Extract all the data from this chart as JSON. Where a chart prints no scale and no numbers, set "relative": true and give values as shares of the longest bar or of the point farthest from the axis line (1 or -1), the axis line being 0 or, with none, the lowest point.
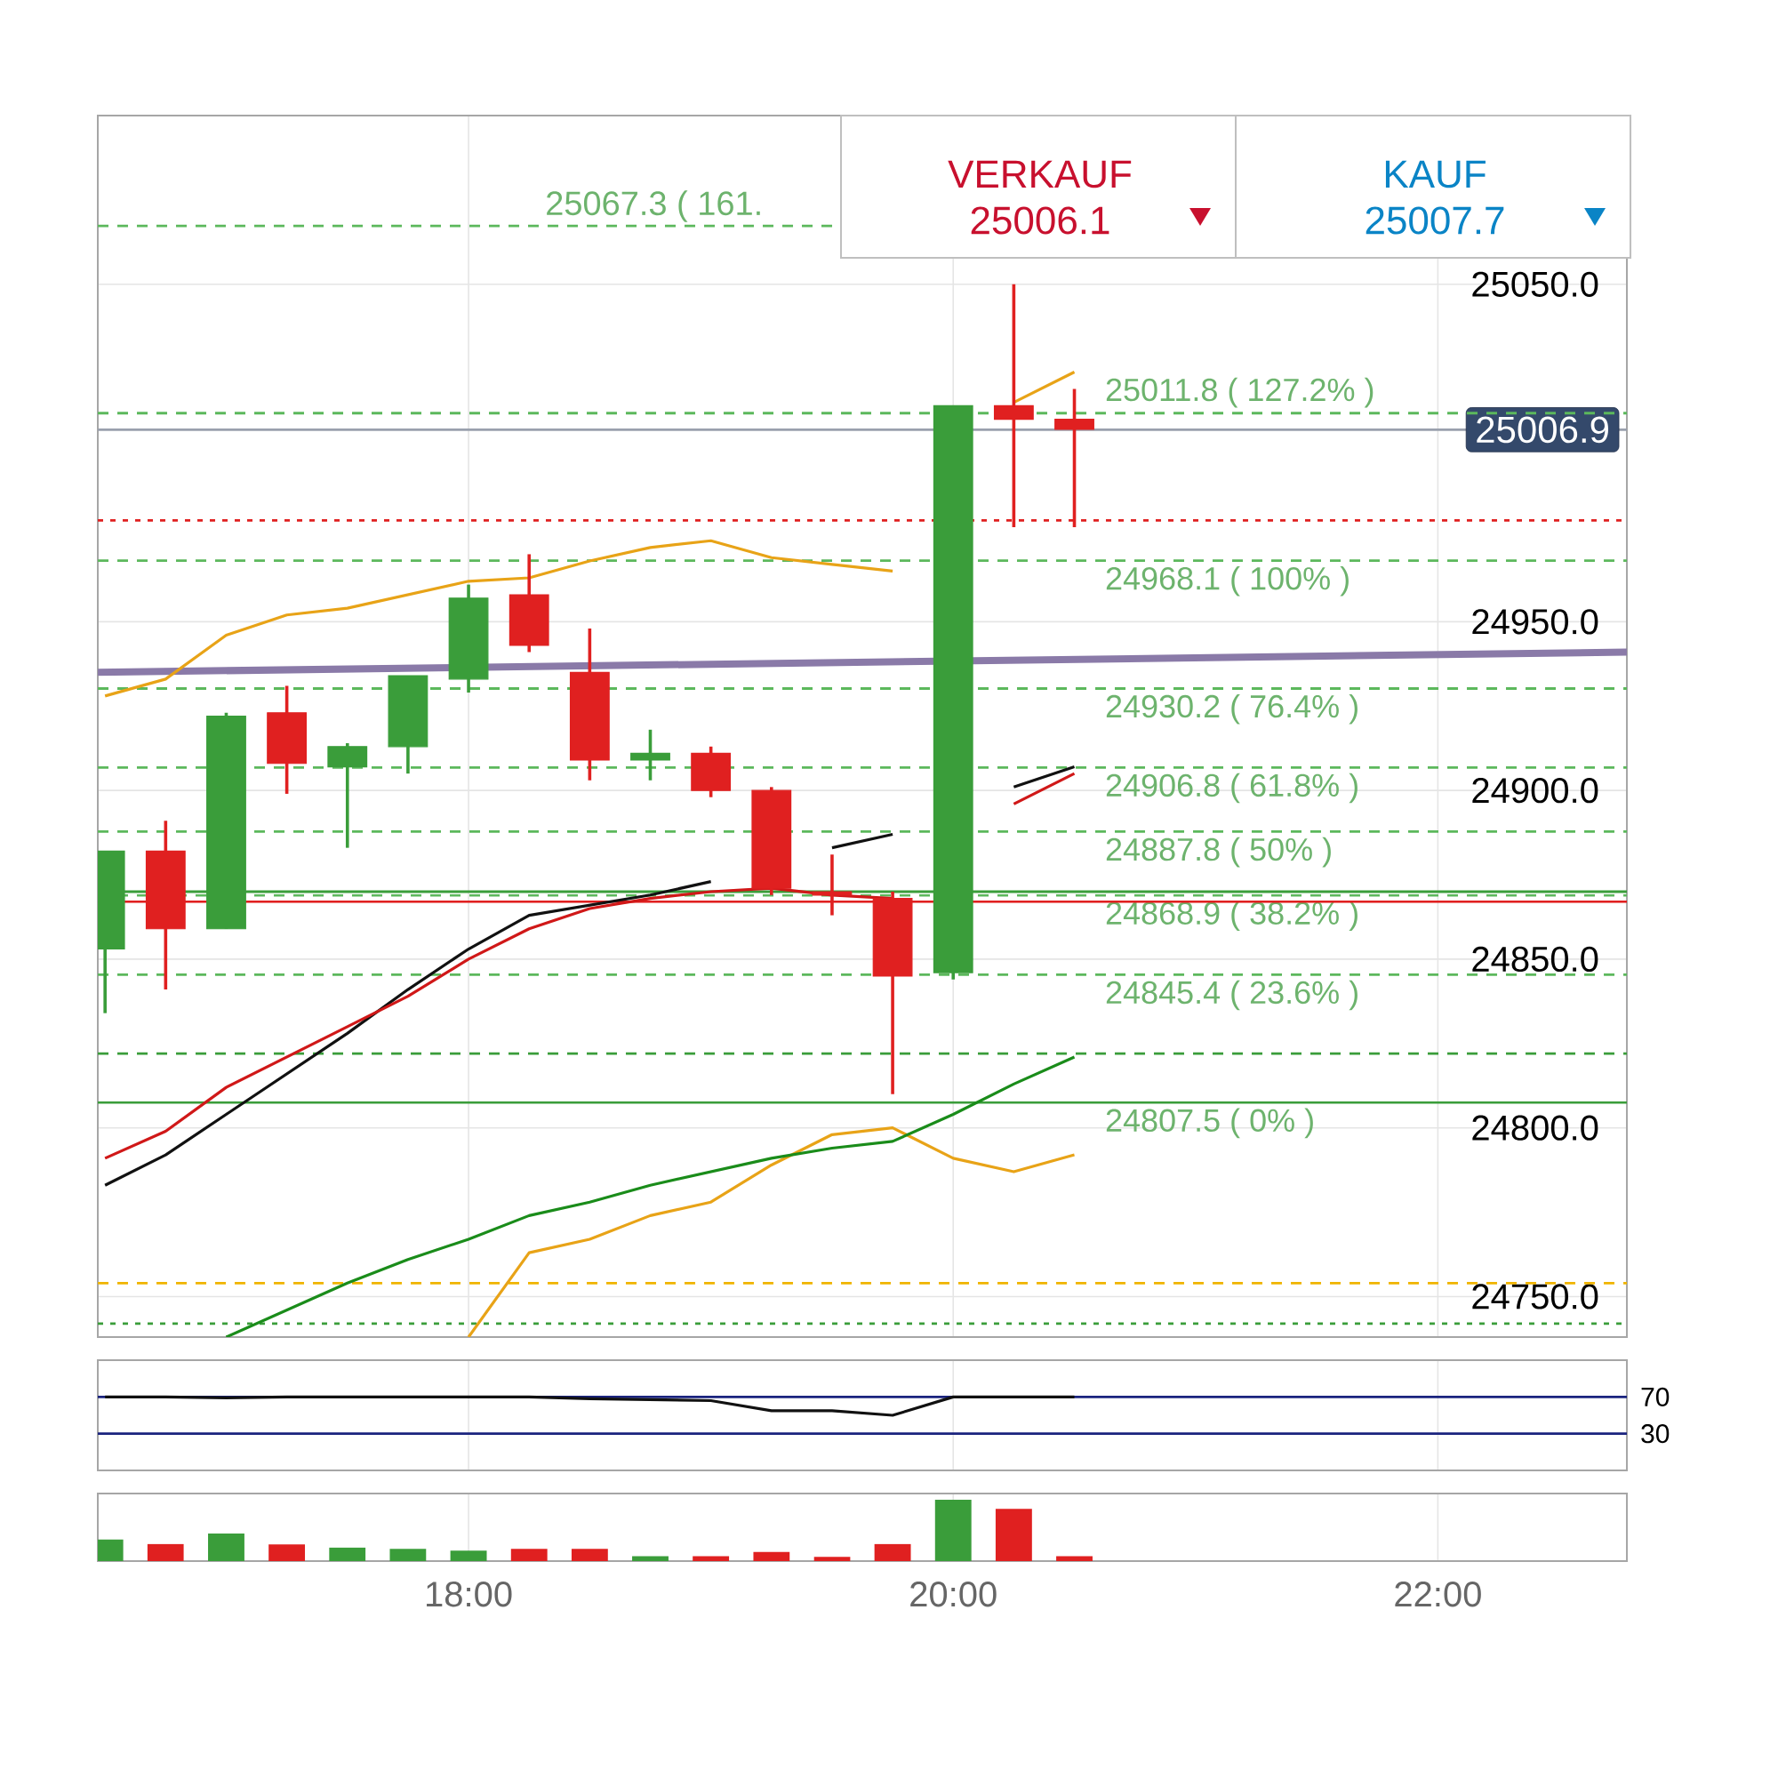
{
  "chart_data": [
    {
      "type": "candlestick",
      "annotations": [
        "VERKAUF",
        "25006.1",
        "KAUF",
        "25007.7"
      ],
      "x": [
        16.5,
        16.75,
        17,
        17.25,
        17.5,
        17.75,
        18,
        18.25,
        18.5,
        18.75,
        19,
        19.25,
        19.5,
        19.75,
        20,
        20.25,
        20.5
      ],
      "ohlc": [
        [
          24853,
          24882,
          24834,
          24882
        ],
        [
          24882,
          24891,
          24841,
          24859
        ],
        [
          24859,
          24923,
          24859,
          24922
        ],
        [
          24923,
          24931,
          24899,
          24908
        ],
        [
          24907,
          24914,
          24883,
          24913
        ],
        [
          24913,
          24934,
          24905,
          24934
        ],
        [
          24933,
          24961,
          24929,
          24957
        ],
        [
          24958,
          24970,
          24941,
          24943
        ],
        [
          24935,
          24948,
          24903,
          24909
        ],
        [
          24909,
          24918,
          24903,
          24911
        ],
        [
          24911,
          24913,
          24898,
          24900
        ],
        [
          24900,
          24901,
          24869,
          24871
        ],
        [
          24870,
          24881,
          24863,
          24869
        ],
        [
          24868,
          24870,
          24810,
          24845
        ],
        [
          24846,
          25014,
          24844,
          25014
        ],
        [
          25014,
          25050,
          24978,
          25010
        ],
        [
          25010,
          25019,
          24978,
          25007
        ]
      ],
      "colors": [
        "#3a9d3a",
        "#e02020",
        "#3a9d3a",
        "#e02020",
        "#3a9d3a",
        "#3a9d3a",
        "#3a9d3a",
        "#e02020",
        "#e02020",
        "#3a9d3a",
        "#e02020",
        "#e02020",
        "#e02020",
        "#e02020",
        "#3a9d3a",
        "#e02020",
        "#e02020"
      ],
      "series": [
        {
          "type": "line",
          "color": "#8a7aa8",
          "x": [
            16.47,
            22.78
          ],
          "values": [
            24935,
            24941
          ]
        },
        {
          "type": "line",
          "color": "#e8a317",
          "x": [
            16.5,
            16.75,
            17,
            17.25,
            17.5,
            17.75,
            18,
            18.25,
            18.5,
            18.75,
            19,
            19.25,
            19.5,
            19.75,
            20,
            20.25,
            20.5
          ],
          "values": [
            24928,
            24933,
            24946,
            24952,
            24954,
            24958,
            24962,
            24963,
            24968,
            24972,
            24974,
            24969,
            24967,
            24965,
            null,
            25015,
            25024
          ]
        },
        {
          "type": "line",
          "color": "#e8a317",
          "x": [
            18,
            18.25,
            18.5,
            18.75,
            19,
            19.25,
            19.5,
            19.75,
            20,
            20.25,
            20.5
          ],
          "values": [
            24738,
            24763,
            24767,
            24774,
            24778,
            24789,
            24798,
            24800,
            24791,
            24787,
            24792
          ]
        },
        {
          "type": "line",
          "color": "#1a8c1a",
          "x": [
            17,
            17.25,
            17.5,
            17.75,
            18,
            18.25,
            18.5,
            18.75,
            19,
            19.25,
            19.5,
            19.75,
            20,
            20.25,
            20.5
          ],
          "values": [
            24738,
            24746,
            24754,
            24761,
            24767,
            24774,
            24778,
            24783,
            24787,
            24791,
            24794,
            24796,
            24804,
            24813,
            24821
          ]
        },
        {
          "type": "line",
          "color": "#111111",
          "x": [
            16.5,
            16.75,
            17,
            17.25,
            17.5,
            17.75,
            18,
            18.25,
            18.5,
            18.75,
            19,
            19.25,
            19.5,
            19.75,
            20,
            20.25,
            20.5
          ],
          "values": [
            24783,
            24792,
            24804,
            24816,
            24828,
            24841,
            24853,
            24863,
            24866,
            24869,
            24873,
            null,
            24883,
            24887,
            null,
            24901,
            24907
          ]
        },
        {
          "type": "line",
          "color": "#d01818",
          "x": [
            16.5,
            16.75,
            17,
            17.25,
            17.5,
            17.75,
            18,
            18.25,
            18.5,
            18.75,
            19,
            19.25,
            19.5,
            19.75,
            20,
            20.25,
            20.5
          ],
          "values": [
            24791,
            24799,
            24812,
            24821,
            24830,
            24839,
            24850,
            24859,
            24865,
            24868,
            24870,
            24871,
            24869,
            24868,
            null,
            24896,
            24905
          ]
        }
      ],
      "ref_lines": [
        {
          "axis": "y",
          "value": 25006.9,
          "label": "25006.9",
          "color": "#9aa0ad",
          "line_style": "solid"
        },
        {
          "axis": "y",
          "value": 25067.3,
          "label": "25067.3 ( 161.",
          "color": "#5cb85c",
          "line_style": "dashed"
        },
        {
          "axis": "y",
          "value": 25011.8,
          "label": "25011.8 ( 127.2% )",
          "color": "#5cb85c",
          "line_style": "dashed"
        },
        {
          "axis": "y",
          "value": 24968.1,
          "label": "24968.1 ( 100% )",
          "color": "#5cb85c",
          "line_style": "dashed"
        },
        {
          "axis": "y",
          "value": 24930.2,
          "label": "24930.2 ( 76.4% )",
          "color": "#5cb85c",
          "line_style": "dashed"
        },
        {
          "axis": "y",
          "value": 24906.8,
          "label": "24906.8 ( 61.8% )",
          "color": "#5cb85c",
          "line_style": "dashed"
        },
        {
          "axis": "y",
          "value": 24887.8,
          "label": "24887.8 ( 50% )",
          "color": "#5cb85c",
          "line_style": "dashed"
        },
        {
          "axis": "y",
          "value": 24868.9,
          "label": "24868.9 ( 38.2% )",
          "color": "#5cb85c",
          "line_style": "dashed"
        },
        {
          "axis": "y",
          "value": 24845.4,
          "label": "24845.4 ( 23.6% )",
          "color": "#5cb85c",
          "line_style": "dashed"
        },
        {
          "axis": "y",
          "value": 24807.5,
          "label": "24807.5 ( 0% )",
          "color": "#3a9d3a",
          "line_style": "solid"
        },
        {
          "axis": "y",
          "value": 24980,
          "color": "#e02020",
          "line_style": "dotted"
        },
        {
          "axis": "y",
          "value": 24870,
          "color": "#3a9d3a",
          "line_style": "solid"
        },
        {
          "axis": "y",
          "value": 24867,
          "color": "#e02020",
          "line_style": "solid"
        },
        {
          "axis": "y",
          "value": 24822,
          "color": "#3a9d3a",
          "line_style": "dashed"
        },
        {
          "axis": "y",
          "value": 24754,
          "color": "#f0b400",
          "line_style": "dashed"
        },
        {
          "axis": "y",
          "value": 24742,
          "color": "#3a9d3a",
          "line_style": "dotted"
        }
      ],
      "xlim": [
        16.47,
        22.78
      ],
      "xticks": [
        {
          "value": 18,
          "label": null
        },
        {
          "value": 20,
          "label": null
        },
        {
          "value": 22,
          "label": null
        }
      ],
      "ylim": [
        24738,
        25100
      ],
      "yticks": [
        {
          "value": 24750,
          "label": "24750.0"
        },
        {
          "value": 24800,
          "label": "24800.0"
        },
        {
          "value": 24850,
          "label": "24850.0"
        },
        {
          "value": 24900,
          "label": "24900.0"
        },
        {
          "value": 24950,
          "label": "24950.0"
        },
        {
          "value": 25050,
          "label": "25050.0"
        }
      ],
      "grid": true,
      "tick_labels": "y"
    },
    {
      "type": "line",
      "x": [
        16.5,
        16.75,
        17,
        17.25,
        17.5,
        17.75,
        18,
        18.25,
        18.5,
        18.75,
        19,
        19.25,
        19.5,
        19.75,
        20,
        20.25,
        20.5
      ],
      "series": [
        {
          "color": "#111111",
          "values": [
            70,
            70,
            69,
            70,
            70,
            70,
            70,
            70,
            68,
            67,
            66,
            55,
            55,
            50,
            70,
            70,
            70
          ]
        }
      ],
      "ref_lines": [
        {
          "axis": "y",
          "value": 70,
          "color": "#1a237e",
          "line_style": "solid"
        },
        {
          "axis": "y",
          "value": 30,
          "color": "#1a237e",
          "line_style": "solid"
        }
      ],
      "xlim": [
        16.47,
        22.78
      ],
      "xticks": [
        {
          "value": 18,
          "label": null
        },
        {
          "value": 20,
          "label": null
        },
        {
          "value": 22,
          "label": null
        }
      ],
      "ylim": [
        -10,
        110
      ],
      "yticks": [
        30,
        70
      ],
      "grid": "x",
      "tick_labels": "y"
    },
    {
      "type": "bar",
      "relative": true,
      "x": [
        16.5,
        16.75,
        17,
        17.25,
        17.5,
        17.75,
        18,
        18.25,
        18.5,
        18.75,
        19,
        19.25,
        19.5,
        19.75,
        20,
        20.25,
        20.5
      ],
      "values": [
        0.35,
        0.28,
        0.45,
        0.27,
        0.22,
        0.2,
        0.17,
        0.2,
        0.2,
        0.08,
        0.08,
        0.15,
        0.07,
        0.28,
        1,
        0.85,
        0.08
      ],
      "colors": [
        "#3a9d3a",
        "#e02020",
        "#3a9d3a",
        "#e02020",
        "#3a9d3a",
        "#3a9d3a",
        "#3a9d3a",
        "#e02020",
        "#e02020",
        "#3a9d3a",
        "#e02020",
        "#e02020",
        "#e02020",
        "#e02020",
        "#3a9d3a",
        "#e02020",
        "#e02020"
      ],
      "xlim": [
        16.47,
        22.78
      ],
      "xticks": [
        {
          "value": 18,
          "label": "18:00"
        },
        {
          "value": 20,
          "label": "20:00"
        },
        {
          "value": 22,
          "label": "22:00"
        }
      ],
      "grid": "x",
      "tick_labels": "x"
    }
  ]
}
